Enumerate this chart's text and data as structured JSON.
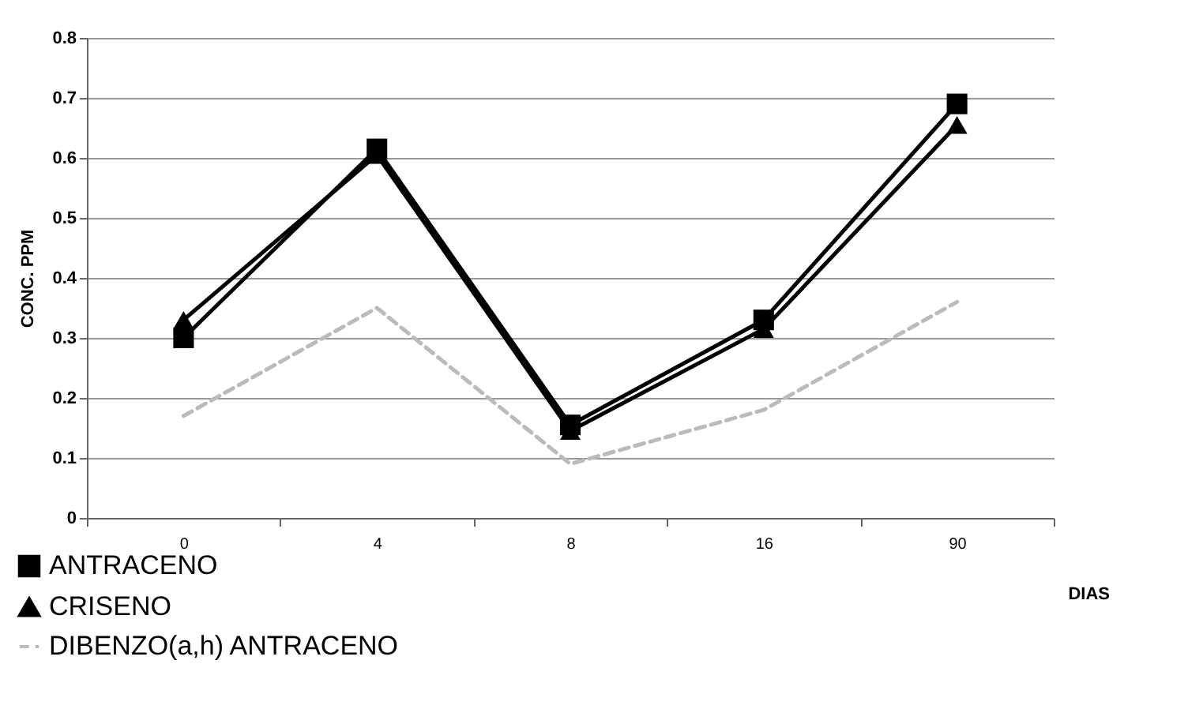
{
  "chart_data": {
    "type": "line",
    "ylabel": "CONC. PPM",
    "xlabel": "DIAS",
    "categories": [
      "0",
      "4",
      "8",
      "16",
      "90"
    ],
    "series": [
      {
        "name": "ANTRACENO",
        "color": "#000000",
        "marker": "square",
        "line_style": "solid",
        "values": [
          0.3,
          0.615,
          0.155,
          0.33,
          0.69
        ]
      },
      {
        "name": "CRISENO",
        "color": "#000000",
        "marker": "triangle",
        "line_style": "solid",
        "values": [
          0.33,
          0.605,
          0.145,
          0.315,
          0.655
        ]
      },
      {
        "name": "DIBENZO(a,h) ANTRACENO",
        "color": "#bbbbbb",
        "marker": "none",
        "line_style": "dashed",
        "values": [
          0.17,
          0.35,
          0.09,
          0.18,
          0.36
        ]
      }
    ],
    "ylim": [
      0,
      0.8
    ],
    "yticks": [
      0,
      0.1,
      0.2,
      0.3,
      0.4,
      0.5,
      0.6,
      0.7,
      0.8
    ],
    "grid": "y",
    "legend": "bottom left"
  }
}
